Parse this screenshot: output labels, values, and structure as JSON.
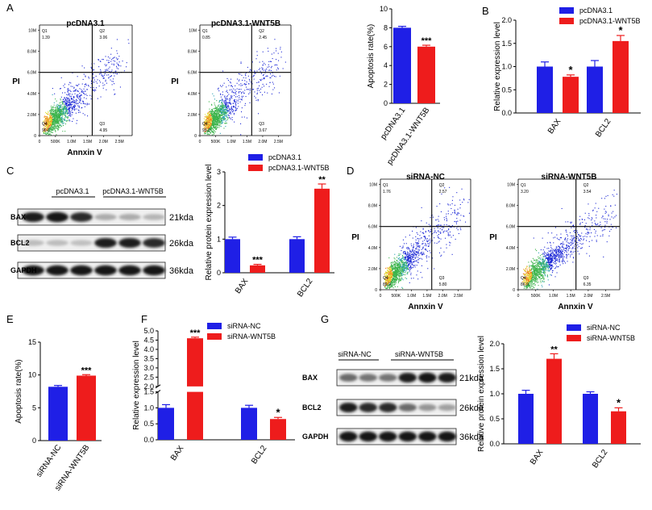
{
  "colors": {
    "blue": "#1f1fe6",
    "red": "#ee1c1c",
    "black": "#000000",
    "dot_blue": "#1e2ad6",
    "dot_green": "#3cb44b",
    "dot_yellow": "#e0e030",
    "dot_orange": "#f08020"
  },
  "panel_letters": [
    "A",
    "B",
    "C",
    "D",
    "E",
    "F",
    "G"
  ],
  "flow": [
    {
      "title": "pcDNA3.1",
      "ylabel": "PI",
      "xlabel": "Annxin V",
      "show_xlabel": true,
      "q1": "1.39",
      "q2": "3.06",
      "q3": "4.95",
      "q4": "90.6",
      "ub": 0.35,
      "scale": 0.21
    },
    {
      "title": "pcDNA3.1-WNT5B",
      "ylabel": "PI",
      "xlabel": "",
      "show_xlabel": false,
      "q1": "0.85",
      "q2": "2.45",
      "q3": "3.67",
      "q4": "93.0",
      "ub": 0.3,
      "scale": 0.19
    },
    {
      "title": "siRNA-NC",
      "ylabel": "PI",
      "xlabel": "Annxin V",
      "show_xlabel": true,
      "q1": "1.76",
      "q2": "2.57",
      "q3": "5.80",
      "q4": "89.9",
      "ub": 0.4,
      "scale": 0.23
    },
    {
      "title": "siRNA-WNT5B",
      "ylabel": "PI",
      "xlabel": "Annxin V",
      "show_xlabel": true,
      "q1": "3.20",
      "q2": "3.54",
      "q3": "6.35",
      "q4": "86.9",
      "ub": 0.55,
      "scale": 0.28
    }
  ],
  "flow_axis": {
    "yticks": [
      "0",
      "2.0M",
      "4.0M",
      "6.0M",
      "8.0M",
      "10M"
    ],
    "xticks": [
      "0",
      "500K",
      "1.0M",
      "1.5M",
      "2.0M",
      "2.5M"
    ],
    "ytick_vals": [
      0,
      2,
      4,
      6,
      8,
      10
    ],
    "xtick_vals": [
      0,
      0.5,
      1.0,
      1.5,
      2.0,
      2.5
    ],
    "xmax": 2.9,
    "ymax": 10.5,
    "gate_x": 1.65,
    "gate_y": 6.0
  },
  "chart_data": [
    {
      "panel": "A",
      "type": "bar",
      "ylabel": "Apoptosis rate(%)",
      "ylim": [
        0,
        10
      ],
      "ticks": [
        0,
        2,
        4,
        6,
        8,
        10
      ],
      "categories": [
        "pcDNA3.1",
        "pcDNA3.1-WNT5B"
      ],
      "values": [
        8.0,
        6.0
      ],
      "errors": [
        0.15,
        0.15
      ],
      "sig": [
        "",
        "***"
      ],
      "legend": []
    },
    {
      "panel": "B",
      "type": "bar",
      "ylabel": "Relative expression level",
      "ylim": [
        0,
        2.0
      ],
      "ticks": [
        0.0,
        0.5,
        1.0,
        1.5,
        2.0
      ],
      "categories": [
        "BAX",
        "BCL2"
      ],
      "series": [
        {
          "name": "pcDNA3.1",
          "values": [
            1.0,
            1.0
          ],
          "errors": [
            0.1,
            0.13
          ],
          "sig": [
            "",
            ""
          ]
        },
        {
          "name": "pcDNA3.1-WNT5B",
          "values": [
            0.78,
            1.55
          ],
          "errors": [
            0.04,
            0.12
          ],
          "sig": [
            "*",
            "*"
          ]
        }
      ],
      "legend": [
        "pcDNA3.1",
        "pcDNA3.1-WNT5B"
      ]
    },
    {
      "panel": "C",
      "type": "bar",
      "ylabel": "Relative protein expression level",
      "ylim": [
        0,
        3
      ],
      "ticks": [
        0,
        1,
        2,
        3
      ],
      "categories": [
        "BAX",
        "BCL2"
      ],
      "series": [
        {
          "name": "pcDNA3.1",
          "values": [
            1.0,
            1.0
          ],
          "errors": [
            0.06,
            0.07
          ],
          "sig": [
            "",
            ""
          ]
        },
        {
          "name": "pcDNA3.1-WNT5B",
          "values": [
            0.22,
            2.5
          ],
          "errors": [
            0.03,
            0.14
          ],
          "sig": [
            "***",
            "**"
          ]
        }
      ],
      "legend": [
        "pcDNA3.1",
        "pcDNA3.1-WNT5B"
      ]
    },
    {
      "panel": "E",
      "type": "bar",
      "ylabel": "Apoptosis rate(%)",
      "ylim": [
        0,
        15
      ],
      "ticks": [
        0,
        5,
        10,
        15
      ],
      "categories": [
        "siRNA-NC",
        "siRNA-WNT5B"
      ],
      "values": [
        8.2,
        9.9
      ],
      "errors": [
        0.2,
        0.15
      ],
      "sig": [
        "",
        "***"
      ],
      "legend": []
    },
    {
      "panel": "F",
      "type": "bar",
      "ylabel": "Relative expression level",
      "ylim": [
        0,
        5.0
      ],
      "axis_break": [
        1.5,
        2.0
      ],
      "ticks": [
        0.0,
        0.5,
        1.0,
        1.5,
        2.0,
        2.5,
        3.0,
        3.5,
        4.0,
        4.5,
        5.0
      ],
      "categories": [
        "BAX",
        "BCL2"
      ],
      "series": [
        {
          "name": "siRNA-NC",
          "values": [
            1.0,
            1.0
          ],
          "errors": [
            0.1,
            0.08
          ],
          "sig": [
            "",
            ""
          ]
        },
        {
          "name": "siRNA-WNT5B",
          "values": [
            4.6,
            0.65
          ],
          "errors": [
            0.06,
            0.05
          ],
          "sig": [
            "***",
            "*"
          ]
        }
      ],
      "legend": [
        "siRNA-NC",
        "siRNA-WNT5B"
      ]
    },
    {
      "panel": "G",
      "type": "bar",
      "ylabel": "Relative protein expression level",
      "ylim": [
        0,
        2.0
      ],
      "ticks": [
        0.0,
        0.5,
        1.0,
        1.5,
        2.0
      ],
      "categories": [
        "BAX",
        "BCL2"
      ],
      "series": [
        {
          "name": "siRNA-NC",
          "values": [
            1.0,
            1.0
          ],
          "errors": [
            0.07,
            0.04
          ],
          "sig": [
            "",
            ""
          ]
        },
        {
          "name": "siRNA-WNT5B",
          "values": [
            1.7,
            0.65
          ],
          "errors": [
            0.1,
            0.07
          ],
          "sig": [
            "**",
            "*"
          ]
        }
      ],
      "legend": [
        "siRNA-NC",
        "siRNA-WNT5B"
      ]
    }
  ],
  "blots": [
    {
      "panel": "C",
      "groups": [
        "pcDNA3.1",
        "pcDNA3.1-WNT5B"
      ],
      "rows": [
        {
          "label": "BAX",
          "kda": "21kda",
          "intensity": [
            0.95,
            1.0,
            0.9,
            0.3,
            0.3,
            0.25
          ]
        },
        {
          "label": "BCL2",
          "kda": "26kda",
          "intensity": [
            0.22,
            0.22,
            0.2,
            0.95,
            0.95,
            0.9
          ]
        },
        {
          "label": "GAPDH",
          "kda": "36kda",
          "intensity": [
            1.0,
            1.0,
            1.0,
            1.0,
            1.0,
            1.0
          ]
        }
      ]
    },
    {
      "panel": "G",
      "groups": [
        "siRNA-NC",
        "siRNA-WNT5B"
      ],
      "rows": [
        {
          "label": "BAX",
          "kda": "21kda",
          "intensity": [
            0.6,
            0.55,
            0.55,
            0.95,
            1.0,
            0.95
          ]
        },
        {
          "label": "BCL2",
          "kda": "26kda",
          "intensity": [
            0.95,
            0.9,
            0.9,
            0.6,
            0.4,
            0.35
          ]
        },
        {
          "label": "GAPDH",
          "kda": "36kda",
          "intensity": [
            1.0,
            1.0,
            1.0,
            1.0,
            1.0,
            1.0
          ]
        }
      ]
    }
  ]
}
